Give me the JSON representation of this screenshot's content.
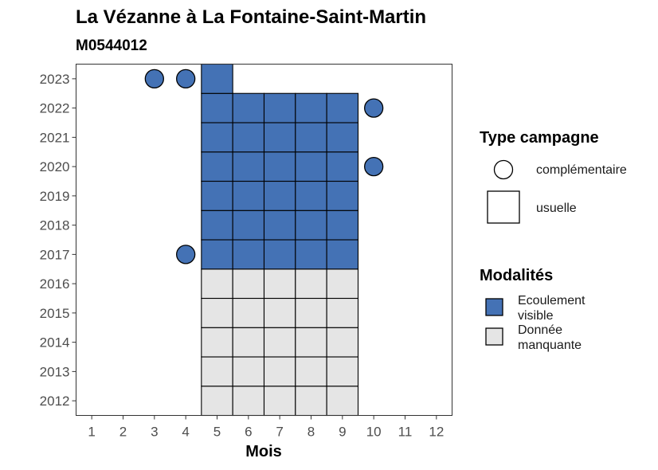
{
  "chart_data": {
    "type": "heatmap",
    "title": "La Vézanne à La Fontaine-Saint-Martin",
    "subtitle": "M0544012",
    "xlabel": "Mois",
    "ylabel": "",
    "x_ticks": [
      1,
      2,
      3,
      4,
      5,
      6,
      7,
      8,
      9,
      10,
      11,
      12
    ],
    "y_ticks": [
      2012,
      2013,
      2014,
      2015,
      2016,
      2017,
      2018,
      2019,
      2020,
      2021,
      2022,
      2023
    ],
    "xlim": [
      0.5,
      12.5
    ],
    "ylim": [
      2011.5,
      2023.5
    ],
    "grid": false,
    "colors": {
      "Ecoulement visible": "#4472b5",
      "Donnée manquante": "#e5e5e5"
    },
    "observations": [
      {
        "year": 2012,
        "month": 5,
        "campagne": "usuelle",
        "modalite": "Donnée manquante"
      },
      {
        "year": 2012,
        "month": 6,
        "campagne": "usuelle",
        "modalite": "Donnée manquante"
      },
      {
        "year": 2012,
        "month": 7,
        "campagne": "usuelle",
        "modalite": "Donnée manquante"
      },
      {
        "year": 2012,
        "month": 8,
        "campagne": "usuelle",
        "modalite": "Donnée manquante"
      },
      {
        "year": 2012,
        "month": 9,
        "campagne": "usuelle",
        "modalite": "Donnée manquante"
      },
      {
        "year": 2013,
        "month": 5,
        "campagne": "usuelle",
        "modalite": "Donnée manquante"
      },
      {
        "year": 2013,
        "month": 6,
        "campagne": "usuelle",
        "modalite": "Donnée manquante"
      },
      {
        "year": 2013,
        "month": 7,
        "campagne": "usuelle",
        "modalite": "Donnée manquante"
      },
      {
        "year": 2013,
        "month": 8,
        "campagne": "usuelle",
        "modalite": "Donnée manquante"
      },
      {
        "year": 2013,
        "month": 9,
        "campagne": "usuelle",
        "modalite": "Donnée manquante"
      },
      {
        "year": 2014,
        "month": 5,
        "campagne": "usuelle",
        "modalite": "Donnée manquante"
      },
      {
        "year": 2014,
        "month": 6,
        "campagne": "usuelle",
        "modalite": "Donnée manquante"
      },
      {
        "year": 2014,
        "month": 7,
        "campagne": "usuelle",
        "modalite": "Donnée manquante"
      },
      {
        "year": 2014,
        "month": 8,
        "campagne": "usuelle",
        "modalite": "Donnée manquante"
      },
      {
        "year": 2014,
        "month": 9,
        "campagne": "usuelle",
        "modalite": "Donnée manquante"
      },
      {
        "year": 2015,
        "month": 5,
        "campagne": "usuelle",
        "modalite": "Donnée manquante"
      },
      {
        "year": 2015,
        "month": 6,
        "campagne": "usuelle",
        "modalite": "Donnée manquante"
      },
      {
        "year": 2015,
        "month": 7,
        "campagne": "usuelle",
        "modalite": "Donnée manquante"
      },
      {
        "year": 2015,
        "month": 8,
        "campagne": "usuelle",
        "modalite": "Donnée manquante"
      },
      {
        "year": 2015,
        "month": 9,
        "campagne": "usuelle",
        "modalite": "Donnée manquante"
      },
      {
        "year": 2016,
        "month": 5,
        "campagne": "usuelle",
        "modalite": "Donnée manquante"
      },
      {
        "year": 2016,
        "month": 6,
        "campagne": "usuelle",
        "modalite": "Donnée manquante"
      },
      {
        "year": 2016,
        "month": 7,
        "campagne": "usuelle",
        "modalite": "Donnée manquante"
      },
      {
        "year": 2016,
        "month": 8,
        "campagne": "usuelle",
        "modalite": "Donnée manquante"
      },
      {
        "year": 2016,
        "month": 9,
        "campagne": "usuelle",
        "modalite": "Donnée manquante"
      },
      {
        "year": 2017,
        "month": 5,
        "campagne": "usuelle",
        "modalite": "Ecoulement visible"
      },
      {
        "year": 2017,
        "month": 6,
        "campagne": "usuelle",
        "modalite": "Ecoulement visible"
      },
      {
        "year": 2017,
        "month": 7,
        "campagne": "usuelle",
        "modalite": "Ecoulement visible"
      },
      {
        "year": 2017,
        "month": 8,
        "campagne": "usuelle",
        "modalite": "Ecoulement visible"
      },
      {
        "year": 2017,
        "month": 9,
        "campagne": "usuelle",
        "modalite": "Ecoulement visible"
      },
      {
        "year": 2018,
        "month": 5,
        "campagne": "usuelle",
        "modalite": "Ecoulement visible"
      },
      {
        "year": 2018,
        "month": 6,
        "campagne": "usuelle",
        "modalite": "Ecoulement visible"
      },
      {
        "year": 2018,
        "month": 7,
        "campagne": "usuelle",
        "modalite": "Ecoulement visible"
      },
      {
        "year": 2018,
        "month": 8,
        "campagne": "usuelle",
        "modalite": "Ecoulement visible"
      },
      {
        "year": 2018,
        "month": 9,
        "campagne": "usuelle",
        "modalite": "Ecoulement visible"
      },
      {
        "year": 2019,
        "month": 5,
        "campagne": "usuelle",
        "modalite": "Ecoulement visible"
      },
      {
        "year": 2019,
        "month": 6,
        "campagne": "usuelle",
        "modalite": "Ecoulement visible"
      },
      {
        "year": 2019,
        "month": 7,
        "campagne": "usuelle",
        "modalite": "Ecoulement visible"
      },
      {
        "year": 2019,
        "month": 8,
        "campagne": "usuelle",
        "modalite": "Ecoulement visible"
      },
      {
        "year": 2019,
        "month": 9,
        "campagne": "usuelle",
        "modalite": "Ecoulement visible"
      },
      {
        "year": 2020,
        "month": 5,
        "campagne": "usuelle",
        "modalite": "Ecoulement visible"
      },
      {
        "year": 2020,
        "month": 6,
        "campagne": "usuelle",
        "modalite": "Ecoulement visible"
      },
      {
        "year": 2020,
        "month": 7,
        "campagne": "usuelle",
        "modalite": "Ecoulement visible"
      },
      {
        "year": 2020,
        "month": 8,
        "campagne": "usuelle",
        "modalite": "Ecoulement visible"
      },
      {
        "year": 2020,
        "month": 9,
        "campagne": "usuelle",
        "modalite": "Ecoulement visible"
      },
      {
        "year": 2021,
        "month": 5,
        "campagne": "usuelle",
        "modalite": "Ecoulement visible"
      },
      {
        "year": 2021,
        "month": 6,
        "campagne": "usuelle",
        "modalite": "Ecoulement visible"
      },
      {
        "year": 2021,
        "month": 7,
        "campagne": "usuelle",
        "modalite": "Ecoulement visible"
      },
      {
        "year": 2021,
        "month": 8,
        "campagne": "usuelle",
        "modalite": "Ecoulement visible"
      },
      {
        "year": 2021,
        "month": 9,
        "campagne": "usuelle",
        "modalite": "Ecoulement visible"
      },
      {
        "year": 2022,
        "month": 5,
        "campagne": "usuelle",
        "modalite": "Ecoulement visible"
      },
      {
        "year": 2022,
        "month": 6,
        "campagne": "usuelle",
        "modalite": "Ecoulement visible"
      },
      {
        "year": 2022,
        "month": 7,
        "campagne": "usuelle",
        "modalite": "Ecoulement visible"
      },
      {
        "year": 2022,
        "month": 8,
        "campagne": "usuelle",
        "modalite": "Ecoulement visible"
      },
      {
        "year": 2022,
        "month": 9,
        "campagne": "usuelle",
        "modalite": "Ecoulement visible"
      },
      {
        "year": 2023,
        "month": 5,
        "campagne": "usuelle",
        "modalite": "Ecoulement visible"
      },
      {
        "year": 2023,
        "month": 3,
        "campagne": "complémentaire",
        "modalite": "Ecoulement visible"
      },
      {
        "year": 2023,
        "month": 4,
        "campagne": "complémentaire",
        "modalite": "Ecoulement visible"
      },
      {
        "year": 2022,
        "month": 10,
        "campagne": "complémentaire",
        "modalite": "Ecoulement visible"
      },
      {
        "year": 2020,
        "month": 10,
        "campagne": "complémentaire",
        "modalite": "Ecoulement visible"
      },
      {
        "year": 2017,
        "month": 4,
        "campagne": "complémentaire",
        "modalite": "Ecoulement visible"
      }
    ]
  },
  "legend_campagne": {
    "title": "Type campagne",
    "items": [
      {
        "label": "complémentaire",
        "shape": "circle"
      },
      {
        "label": "usuelle",
        "shape": "square"
      }
    ]
  },
  "legend_modalites": {
    "title": "Modalités",
    "items": [
      {
        "lines": [
          "Ecoulement",
          "visible"
        ],
        "color": "#4472b5"
      },
      {
        "lines": [
          "Donnée",
          "manquante"
        ],
        "color": "#e5e5e5"
      }
    ]
  }
}
